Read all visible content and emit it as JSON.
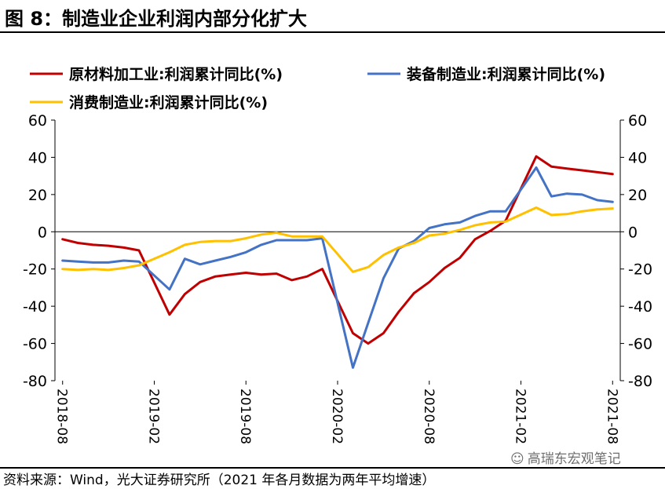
{
  "figure_title": "图 8：制造业企业利润内部分化扩大",
  "source_note": "资料来源：Wind，光大证券研究所（2021 年各月数据为两年平均增速）",
  "watermark": "高瑞东宏观笔记",
  "chart_data": {
    "type": "line",
    "title": "",
    "xlabel": "",
    "ylabel": "",
    "ylim": [
      -80,
      60
    ],
    "yticks": [
      60,
      40,
      20,
      0,
      -20,
      -40,
      -60,
      -80
    ],
    "ytick_labels": [
      "60",
      "40",
      "20",
      "0",
      "-20",
      "-40",
      "-60",
      "-80"
    ],
    "x_count": 37,
    "xtick_index": [
      0,
      6,
      12,
      18,
      24,
      30,
      36
    ],
    "xtick_labels": [
      "2018-08",
      "2019-02",
      "2019-08",
      "2020-02",
      "2020-08",
      "2021-02",
      "2021-08"
    ],
    "legend_position": "top",
    "series": [
      {
        "name": "原材料加工业:利润累计同比(%)",
        "color": "#c00000",
        "values": [
          -4,
          -6,
          -7,
          -7.5,
          -8.5,
          -10,
          null,
          -44.5,
          -33.5,
          -27,
          -24,
          -23,
          -22,
          -23,
          -22.5,
          -26,
          -24,
          -20,
          null,
          -54.5,
          -60,
          -54.5,
          -43,
          -33,
          -27,
          -19.5,
          -14,
          -4,
          0.5,
          6,
          null,
          40.5,
          35,
          34,
          33,
          32,
          31
        ]
      },
      {
        "name": "装备制造业:利润累计同比(%)",
        "color": "#4472c4",
        "values": [
          -15.5,
          -16,
          -16.5,
          -16.5,
          -15.5,
          -16,
          null,
          -31,
          -14.5,
          -17.5,
          -15.5,
          -13.5,
          -11,
          -7,
          -4.5,
          -4.5,
          -4.5,
          -3.5,
          null,
          -73,
          -49,
          -25,
          -9,
          -5,
          2,
          4,
          5,
          8.5,
          11,
          11,
          null,
          34.5,
          19,
          20.5,
          20,
          17,
          16
        ]
      },
      {
        "name": "消费制造业:利润累计同比(%)",
        "color": "#ffc000",
        "values": [
          -20,
          -20.5,
          -20,
          -20.5,
          -19.5,
          -18,
          null,
          -11,
          -7,
          -5.5,
          -5,
          -5,
          -3.5,
          -1.5,
          -0.5,
          -2.5,
          -2.5,
          -2.5,
          null,
          -21.5,
          -19,
          -12.5,
          -8.5,
          -6,
          -2,
          -1,
          1,
          3.5,
          5,
          5.5,
          null,
          13,
          9,
          9.5,
          11,
          12,
          12.5
        ]
      }
    ]
  }
}
